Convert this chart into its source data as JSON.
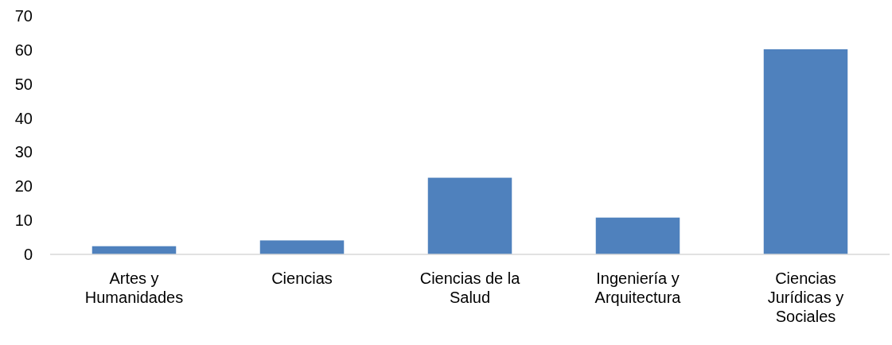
{
  "chart_data": {
    "type": "bar",
    "categories": [
      "Artes y Humanidades",
      "Ciencias",
      "Ciencias de la Salud",
      "Ingeniería y Arquitectura",
      "Ciencias Jurídicas y Sociales"
    ],
    "values": [
      2.4,
      4.1,
      22.5,
      10.8,
      60.2
    ],
    "color": "#4f81bd",
    "ylim": [
      0,
      70
    ],
    "yticks": [
      0,
      10,
      20,
      30,
      40,
      50,
      60,
      70
    ],
    "grid": false
  }
}
